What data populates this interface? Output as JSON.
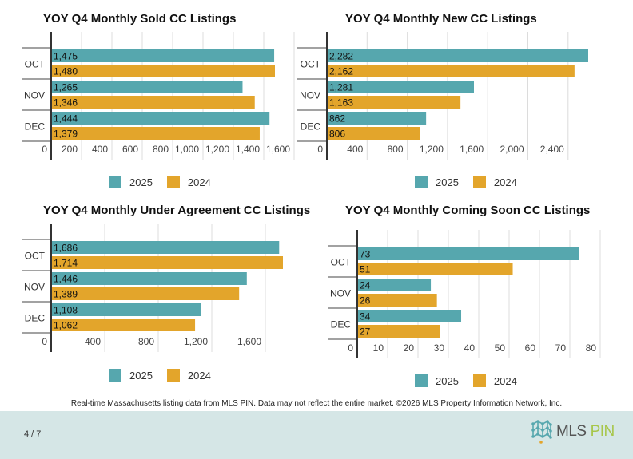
{
  "colors": {
    "series_2025": "#56a7ae",
    "series_2024": "#e3a52b",
    "footer_bg": "#d5e6e6"
  },
  "chart_data": [
    {
      "type": "bar",
      "title": "YOY Q4 Monthly Sold CC Listings",
      "categories": [
        "OCT",
        "NOV",
        "DEC"
      ],
      "series": [
        {
          "name": "2025",
          "values": [
            1475,
            1265,
            1444
          ],
          "labels": [
            "1,475",
            "1,265",
            "1,444"
          ]
        },
        {
          "name": "2024",
          "values": [
            1480,
            1346,
            1379
          ],
          "labels": [
            "1,480",
            "1,346",
            "1,379"
          ]
        }
      ],
      "xticks": [
        "0",
        "200",
        "400",
        "600",
        "800",
        "1,000",
        "1,200",
        "1,400",
        "1,600"
      ],
      "xlim": [
        0,
        1600
      ],
      "orientation": "horizontal",
      "legend": "bottom",
      "grid": true
    },
    {
      "type": "bar",
      "title": "YOY Q4 Monthly New CC Listings",
      "categories": [
        "OCT",
        "NOV",
        "DEC"
      ],
      "series": [
        {
          "name": "2025",
          "values": [
            2282,
            1281,
            862
          ],
          "labels": [
            "2,282",
            "1,281",
            "862"
          ]
        },
        {
          "name": "2024",
          "values": [
            2162,
            1163,
            806
          ],
          "labels": [
            "2,162",
            "1,163",
            "806"
          ]
        }
      ],
      "xticks": [
        "0",
        "400",
        "800",
        "1,200",
        "1,600",
        "2,000",
        "2,400"
      ],
      "xlim": [
        0,
        2400
      ],
      "orientation": "horizontal",
      "legend": "bottom",
      "grid": true
    },
    {
      "type": "bar",
      "title": "YOY Q4 Monthly Under Agreement CC Listings",
      "categories": [
        "OCT",
        "NOV",
        "DEC"
      ],
      "series": [
        {
          "name": "2025",
          "values": [
            1686,
            1446,
            1108
          ],
          "labels": [
            "1,686",
            "1,446",
            "1,108"
          ]
        },
        {
          "name": "2024",
          "values": [
            1714,
            1389,
            1062
          ],
          "labels": [
            "1,714",
            "1,389",
            "1,062"
          ]
        }
      ],
      "xticks": [
        "0",
        "400",
        "800",
        "1,200",
        "1,600"
      ],
      "xlim": [
        0,
        1600
      ],
      "orientation": "horizontal",
      "legend": "bottom",
      "grid": true
    },
    {
      "type": "bar",
      "title": "YOY Q4 Monthly Coming Soon CC Listings",
      "categories": [
        "OCT",
        "NOV",
        "DEC"
      ],
      "series": [
        {
          "name": "2025",
          "values": [
            73,
            24,
            34
          ],
          "labels": [
            "73",
            "24",
            "34"
          ]
        },
        {
          "name": "2024",
          "values": [
            51,
            26,
            27
          ],
          "labels": [
            "51",
            "26",
            "27"
          ]
        }
      ],
      "xticks": [
        "0",
        "10",
        "20",
        "30",
        "40",
        "50",
        "60",
        "70",
        "80"
      ],
      "xlim": [
        0,
        80
      ],
      "orientation": "horizontal",
      "legend": "bottom",
      "grid": true
    }
  ],
  "legend": {
    "item_2025": "2025",
    "item_2024": "2024"
  },
  "footnote": "Real-time Massachusetts listing data from MLS PIN. Data may not reflect the entire market. ©2026 MLS Property Information Network, Inc.",
  "footer": {
    "page_indicator": "4 / 7",
    "logo_text_1": "MLS",
    "logo_text_2": "PIN"
  }
}
